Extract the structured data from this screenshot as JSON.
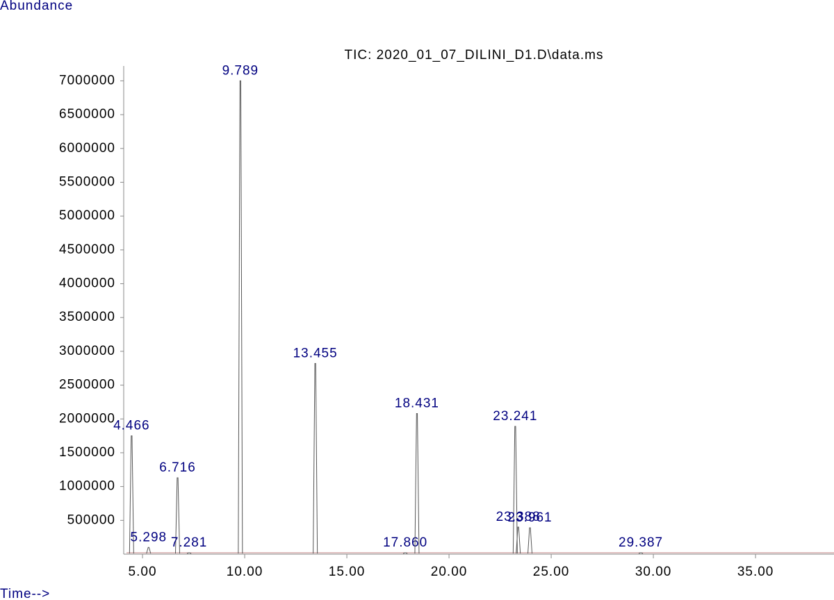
{
  "chart_data": {
    "type": "chromatogram",
    "title": "TIC: 2020_01_07_DILINI_D1.D\\data.ms",
    "y_label": "Abundance",
    "x_label": "Time-->",
    "x": [
      4.466,
      5.298,
      6.716,
      7.281,
      9.789,
      13.455,
      17.86,
      18.431,
      23.241,
      23.388,
      23.961,
      29.387
    ],
    "values": [
      1750000,
      100000,
      1130000,
      20000,
      7000000,
      2820000,
      20000,
      2080000,
      1890000,
      400000,
      390000,
      20000
    ],
    "peak_labels": [
      "4.466",
      "5.298",
      "6.716",
      "7.281",
      "9.789",
      "13.455",
      "17.860",
      "18.431",
      "23.241",
      "23.388",
      "23.961",
      "29.387"
    ],
    "xlim": [
      4.08,
      38.84
    ],
    "ylim": [
      0,
      7220000
    ],
    "xticks": [
      {
        "value": 5,
        "label": "5.00"
      },
      {
        "value": 10,
        "label": "10.00"
      },
      {
        "value": 15,
        "label": "15.00"
      },
      {
        "value": 20,
        "label": "20.00"
      },
      {
        "value": 25,
        "label": "25.00"
      },
      {
        "value": 30,
        "label": "30.00"
      },
      {
        "value": 35,
        "label": "35.00"
      }
    ],
    "yticks": [
      500000,
      1000000,
      1500000,
      2000000,
      2500000,
      3000000,
      3500000,
      4000000,
      4500000,
      5000000,
      5500000,
      6000000,
      6500000,
      7000000
    ],
    "color": "#555555"
  }
}
